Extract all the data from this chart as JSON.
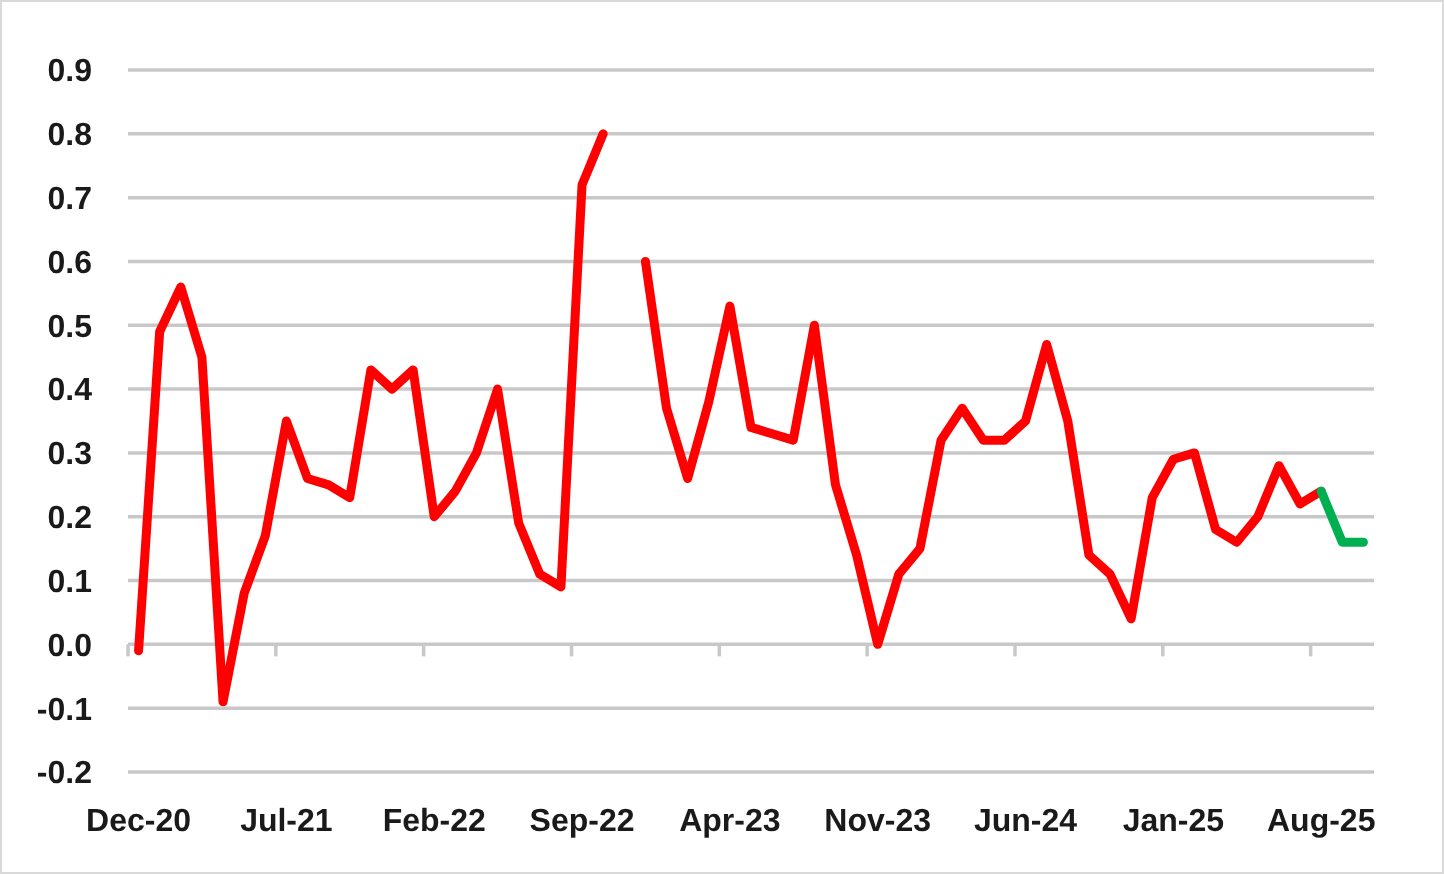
{
  "chart_data": {
    "type": "line",
    "categories": [
      "Dec-20",
      null,
      null,
      null,
      null,
      null,
      null,
      "Jul-21",
      null,
      null,
      null,
      null,
      null,
      null,
      "Feb-22",
      null,
      null,
      null,
      null,
      null,
      null,
      "Sep-22",
      null,
      null,
      null,
      null,
      null,
      null,
      "Apr-23",
      null,
      null,
      null,
      null,
      null,
      null,
      "Nov-23",
      null,
      null,
      null,
      null,
      null,
      null,
      "Jun-24",
      null,
      null,
      null,
      null,
      null,
      null,
      "Jan-25",
      null,
      null,
      null,
      null,
      null,
      null,
      "Aug-25",
      null,
      null
    ],
    "series": [
      {
        "color": "#ff0000",
        "values": [
          -0.01,
          0.49,
          0.56,
          0.45,
          -0.09,
          0.08,
          0.17,
          0.35,
          0.26,
          0.25,
          0.23,
          0.43,
          0.4,
          0.43,
          0.2,
          0.24,
          0.3,
          0.4,
          0.19,
          0.11,
          0.09,
          0.72,
          0.8,
          null,
          0.6,
          0.37,
          0.26,
          0.38,
          0.53,
          0.34,
          0.33,
          0.32,
          0.5,
          0.25,
          0.14,
          0.0,
          0.11,
          0.15,
          0.32,
          0.37,
          0.32,
          0.32,
          0.35,
          0.47,
          0.35,
          0.14,
          0.11,
          0.04,
          0.23,
          0.29,
          0.3,
          0.18,
          0.16,
          0.2,
          0.28,
          0.22,
          0.24,
          null,
          null
        ]
      },
      {
        "color": "#00b050",
        "values": [
          null,
          null,
          null,
          null,
          null,
          null,
          null,
          null,
          null,
          null,
          null,
          null,
          null,
          null,
          null,
          null,
          null,
          null,
          null,
          null,
          null,
          null,
          null,
          null,
          null,
          null,
          null,
          null,
          null,
          null,
          null,
          null,
          null,
          null,
          null,
          null,
          null,
          null,
          null,
          null,
          null,
          null,
          null,
          null,
          null,
          null,
          null,
          null,
          null,
          null,
          null,
          null,
          null,
          null,
          null,
          null,
          0.24,
          0.16,
          0.16
        ]
      }
    ],
    "ylim": [
      -0.2,
      0.9
    ],
    "yticks": [
      -0.2,
      -0.1,
      {
        "value": 0,
        "label": "0.0"
      },
      0.1,
      0.2,
      0.3,
      0.4,
      0.5,
      0.6,
      0.7,
      0.8,
      0.9
    ],
    "grid": "y"
  }
}
